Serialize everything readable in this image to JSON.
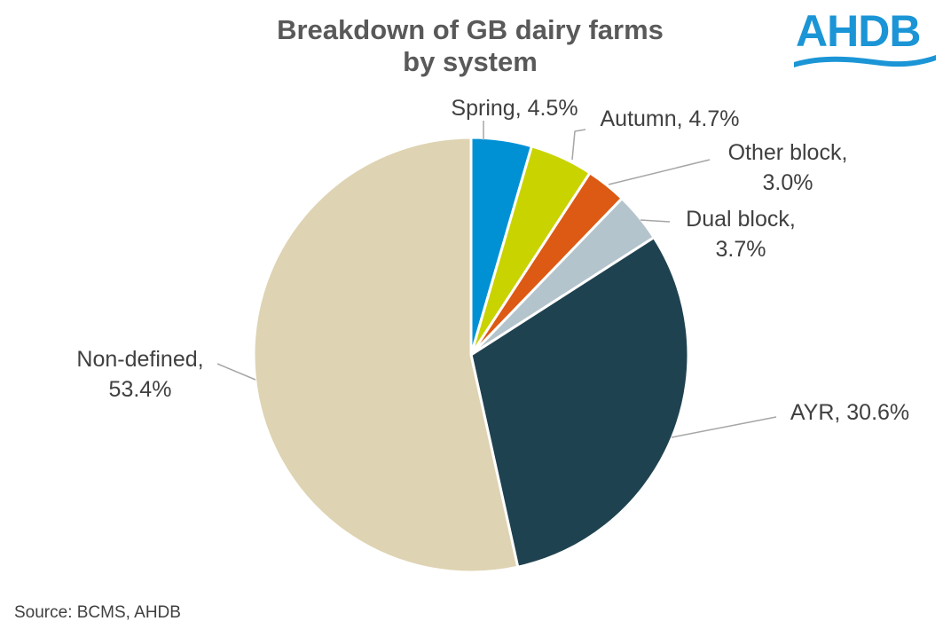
{
  "chart_data": {
    "type": "pie",
    "title": [
      "Breakdown of GB dairy farms",
      "by system"
    ],
    "slices": [
      {
        "label": "Spring",
        "value": 4.5,
        "text": [
          "Spring, 4.5%"
        ],
        "color": "#0091d5"
      },
      {
        "label": "Autumn",
        "value": 4.7,
        "text": [
          "Autumn, 4.7%"
        ],
        "color": "#c9d300"
      },
      {
        "label": "Other block",
        "value": 3.0,
        "text": [
          "Other block,",
          "3.0%"
        ],
        "color": "#dc5a14"
      },
      {
        "label": "Dual block",
        "value": 3.7,
        "text": [
          "Dual block,",
          "3.7%"
        ],
        "color": "#b4c4cc"
      },
      {
        "label": "AYR",
        "value": 30.6,
        "text": [
          "AYR, 30.6%"
        ],
        "color": "#1f4250"
      },
      {
        "label": "Non-defined",
        "value": 53.4,
        "text": [
          "Non-defined,",
          "53.4%"
        ],
        "color": "#ded3b2"
      }
    ],
    "source": "Source: BCMS, AHDB"
  },
  "logo": {
    "text": "AHDB",
    "color": "#1b95d6"
  }
}
